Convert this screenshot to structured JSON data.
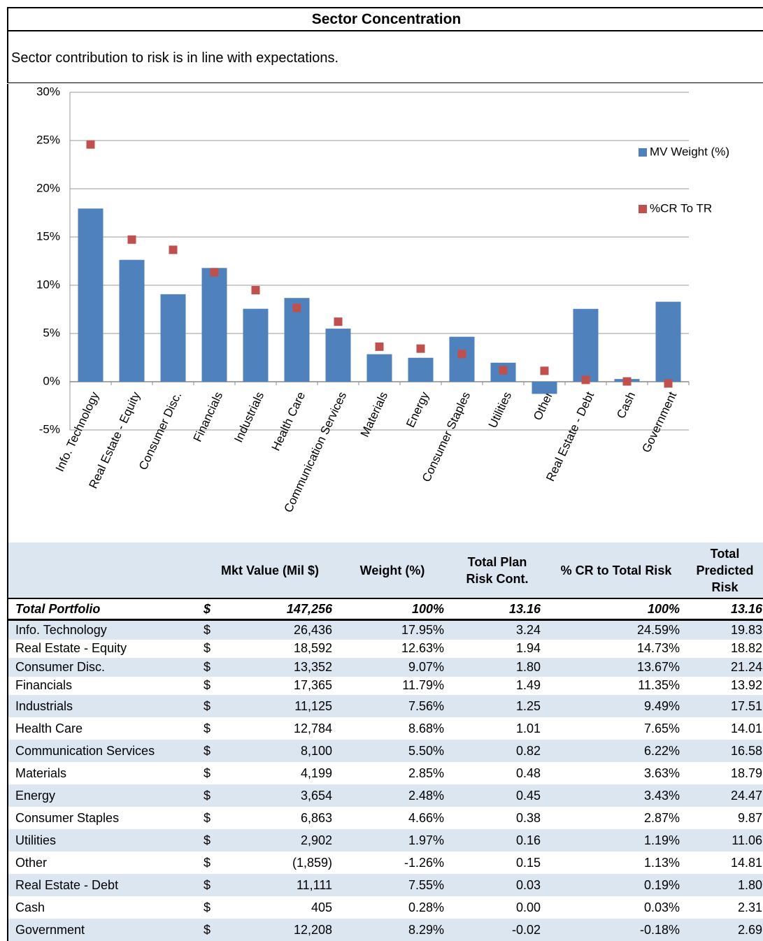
{
  "header": {
    "title": "Sector Concentration",
    "subtitle": "Sector contribution to risk is in line with expectations."
  },
  "chart_data": {
    "type": "bar",
    "categories": [
      "Info. Technology",
      "Real Estate - Equity",
      "Consumer Disc.",
      "Financials",
      "Industrials",
      "Health Care",
      "Communication Services",
      "Materials",
      "Energy",
      "Consumer Staples",
      "Utilities",
      "Other",
      "Real Estate - Debt",
      "Cash",
      "Government"
    ],
    "series": [
      {
        "name": "MV Weight (%)",
        "color": "#4f81bd",
        "type": "bar",
        "values": [
          17.95,
          12.63,
          9.07,
          11.79,
          7.56,
          8.68,
          5.5,
          2.85,
          2.48,
          4.66,
          1.97,
          -1.26,
          7.55,
          0.28,
          8.29
        ]
      },
      {
        "name": "%CR To TR",
        "color": "#c0504d",
        "type": "marker",
        "values": [
          24.59,
          14.73,
          13.67,
          11.35,
          9.49,
          7.65,
          6.22,
          3.63,
          3.43,
          2.87,
          1.19,
          1.13,
          0.19,
          0.03,
          -0.18
        ]
      }
    ],
    "ylim": [
      -5,
      30
    ],
    "yticks": [
      {
        "value": -5,
        "label": "-5%"
      },
      {
        "value": 0,
        "label": "0%"
      },
      {
        "value": 5,
        "label": "5%"
      },
      {
        "value": 10,
        "label": "10%"
      },
      {
        "value": 15,
        "label": "15%"
      },
      {
        "value": 20,
        "label": "20%"
      },
      {
        "value": 25,
        "label": "25%"
      },
      {
        "value": 30,
        "label": "30%"
      }
    ],
    "grid": true,
    "legend": "right"
  },
  "table": {
    "columns": [
      "Mkt Value (Mil $)",
      "Weight (%)",
      "Total Plan Risk Cont.",
      "% CR to Total Risk",
      "Total Predicted Risk"
    ],
    "total": [
      "Total Portfolio",
      "$",
      "147,256",
      "100%",
      "13.16",
      "100%",
      "13.16"
    ],
    "rows": [
      [
        "Info. Technology",
        "$",
        "26,436",
        "17.95%",
        "3.24",
        "24.59%",
        "19.83"
      ],
      [
        "Real Estate - Equity",
        "$",
        "18,592",
        "12.63%",
        "1.94",
        "14.73%",
        "18.82"
      ],
      [
        "Consumer Disc.",
        "$",
        "13,352",
        "9.07%",
        "1.80",
        "13.67%",
        "21.24"
      ],
      [
        "Financials",
        "$",
        "17,365",
        "11.79%",
        "1.49",
        "11.35%",
        "13.92"
      ],
      [
        "Industrials",
        "$",
        "11,125",
        "7.56%",
        "1.25",
        "9.49%",
        "17.51"
      ],
      [
        "Health Care",
        "$",
        "12,784",
        "8.68%",
        "1.01",
        "7.65%",
        "14.01"
      ],
      [
        "Communication Services",
        "$",
        "8,100",
        "5.50%",
        "0.82",
        "6.22%",
        "16.58"
      ],
      [
        "Materials",
        "$",
        "4,199",
        "2.85%",
        "0.48",
        "3.63%",
        "18.79"
      ],
      [
        "Energy",
        "$",
        "3,654",
        "2.48%",
        "0.45",
        "3.43%",
        "24.47"
      ],
      [
        "Consumer Staples",
        "$",
        "6,863",
        "4.66%",
        "0.38",
        "2.87%",
        "9.87"
      ],
      [
        "Utilities",
        "$",
        "2,902",
        "1.97%",
        "0.16",
        "1.19%",
        "11.06"
      ],
      [
        "Other",
        "$",
        "(1,859)",
        "-1.26%",
        "0.15",
        "1.13%",
        "14.81"
      ],
      [
        "Real Estate - Debt",
        "$",
        "11,111",
        "7.55%",
        "0.03",
        "0.19%",
        "1.80"
      ],
      [
        "Cash",
        "$",
        "405",
        "0.28%",
        "0.00",
        "0.03%",
        "2.31"
      ],
      [
        "Government",
        "$",
        "12,208",
        "8.29%",
        "-0.02",
        "-0.18%",
        "2.69"
      ]
    ]
  }
}
